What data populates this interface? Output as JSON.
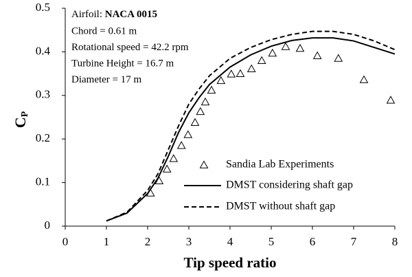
{
  "chart_data": {
    "type": "line",
    "annotations": {
      "airfoil_label": "Airfoil:",
      "airfoil": "NACA 0015",
      "lines": [
        "Chord = 0.61 m",
        "Rotational speed = 42.2 rpm",
        "Turbine Height = 16.7 m",
        "Diameter = 17 m"
      ]
    },
    "xlabel": "Tip speed ratio",
    "ylabel": "C",
    "ylabel_sub": "P",
    "xlim": [
      0,
      8
    ],
    "xticks": [
      0,
      1,
      2,
      3,
      4,
      5,
      6,
      7,
      8
    ],
    "ylim": [
      0,
      0.5
    ],
    "yticks": [
      0,
      0.1,
      0.2,
      0.3,
      0.4,
      0.5
    ],
    "legend": "lower right",
    "series": [
      {
        "name": "Sandia Lab Experiments",
        "color": "#000000",
        "marker": "triangle",
        "x": [
          2.07,
          2.28,
          2.47,
          2.63,
          2.82,
          2.98,
          3.15,
          3.28,
          3.4,
          3.55,
          3.78,
          4.03,
          4.25,
          4.52,
          4.77,
          5.03,
          5.35,
          5.7,
          6.12,
          6.63,
          7.25,
          7.9
        ],
        "values": [
          0.076,
          0.104,
          0.131,
          0.155,
          0.185,
          0.21,
          0.238,
          0.263,
          0.285,
          0.312,
          0.334,
          0.349,
          0.35,
          0.361,
          0.38,
          0.397,
          0.412,
          0.408,
          0.391,
          0.385,
          0.336,
          0.289
        ]
      },
      {
        "name": "DMST considering shaft gap",
        "color": "#000000",
        "dash": "solid",
        "x": [
          1,
          1.5,
          2,
          2.25,
          2.5,
          2.75,
          3,
          3.25,
          3.5,
          4,
          4.5,
          5,
          5.5,
          6,
          6.5,
          7,
          7.5,
          8
        ],
        "values": [
          0.012,
          0.03,
          0.075,
          0.11,
          0.16,
          0.215,
          0.26,
          0.295,
          0.325,
          0.365,
          0.393,
          0.413,
          0.426,
          0.432,
          0.432,
          0.425,
          0.41,
          0.395
        ]
      },
      {
        "name": "DMST without shaft gap",
        "color": "#000000",
        "dash": "dashed",
        "x": [
          1,
          1.5,
          2,
          2.25,
          2.5,
          2.75,
          3,
          3.25,
          3.5,
          4,
          4.5,
          5,
          5.5,
          6,
          6.5,
          7,
          7.5,
          8
        ],
        "values": [
          0.012,
          0.032,
          0.082,
          0.12,
          0.175,
          0.23,
          0.28,
          0.315,
          0.345,
          0.385,
          0.41,
          0.428,
          0.44,
          0.447,
          0.447,
          0.44,
          0.425,
          0.405
        ]
      }
    ]
  }
}
